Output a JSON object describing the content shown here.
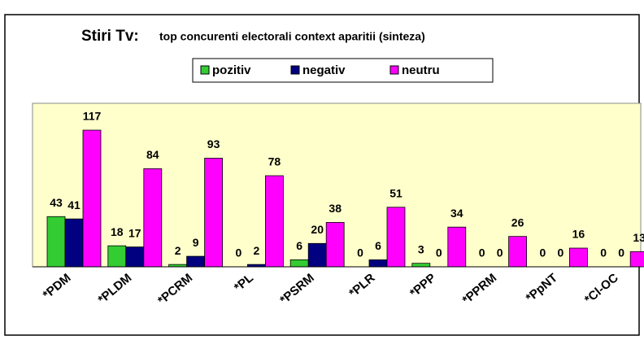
{
  "chart_data": {
    "type": "bar",
    "title": "Stiri Tv:",
    "subtitle": "top concurenti electorali context aparitii (sinteza)",
    "categories": [
      "*PDM",
      "*PLDM",
      "*PCRM",
      "*PL",
      "*PSRM",
      "*PLR",
      "*PPP",
      "*PPRM",
      "*PpNT",
      "*Cl-OC"
    ],
    "series": [
      {
        "name": "pozitiv",
        "color": "#33cc33",
        "values": [
          43,
          18,
          2,
          0,
          6,
          0,
          3,
          0,
          0,
          0
        ]
      },
      {
        "name": "negativ",
        "color": "#000080",
        "values": [
          41,
          17,
          9,
          2,
          20,
          6,
          0,
          0,
          0,
          0
        ]
      },
      {
        "name": "neutru",
        "color": "#ff00ff",
        "values": [
          117,
          84,
          93,
          78,
          38,
          51,
          34,
          26,
          16,
          13
        ]
      }
    ],
    "ylim": [
      0,
      140
    ],
    "plot_background": "#ffffcc"
  }
}
